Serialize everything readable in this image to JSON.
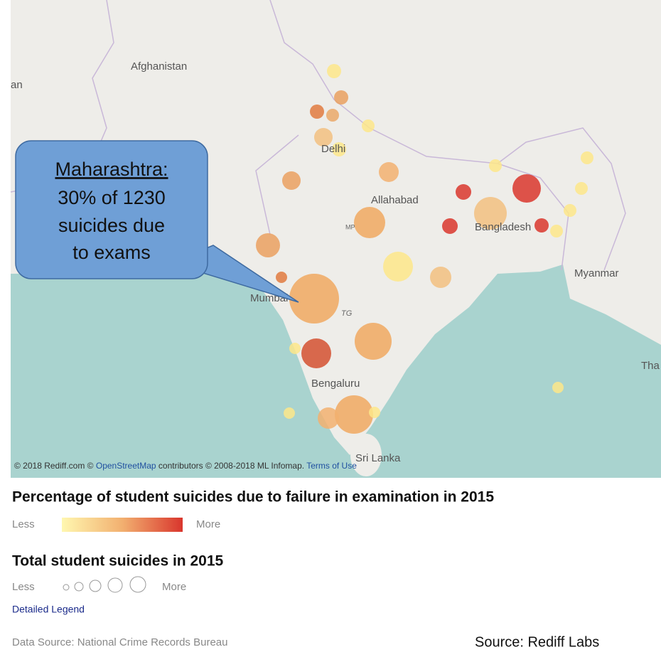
{
  "map": {
    "labels": [
      "Afghanistan",
      "an",
      "Delhi",
      "Allahabad",
      "Bangladesh",
      "Myanmar",
      "Mumbai",
      "TG",
      "MP",
      "Bengaluru",
      "Sri Lanka",
      "Tha"
    ],
    "callout": {
      "heading": "Maharashtra:",
      "lines": [
        "30% of 1230",
        "suicides due",
        "to exams"
      ]
    },
    "attribution": {
      "prefix": "© 2018 Rediff.com © ",
      "osm_link": "OpenStreetMap",
      "middle": " contributors © 2008-2018 ML Infomap. ",
      "terms_link": "Terms of Use"
    }
  },
  "legend": {
    "color_title": "Percentage of student suicides due to failure in examination in 2015",
    "color_less": "Less",
    "color_more": "More",
    "size_title": "Total student suicides in 2015",
    "size_less": "Less",
    "size_more": "More",
    "detailed_link": "Detailed Legend",
    "data_source": "Data Source: National Crime Records Bureau"
  },
  "source": "Source: Rediff Labs"
}
